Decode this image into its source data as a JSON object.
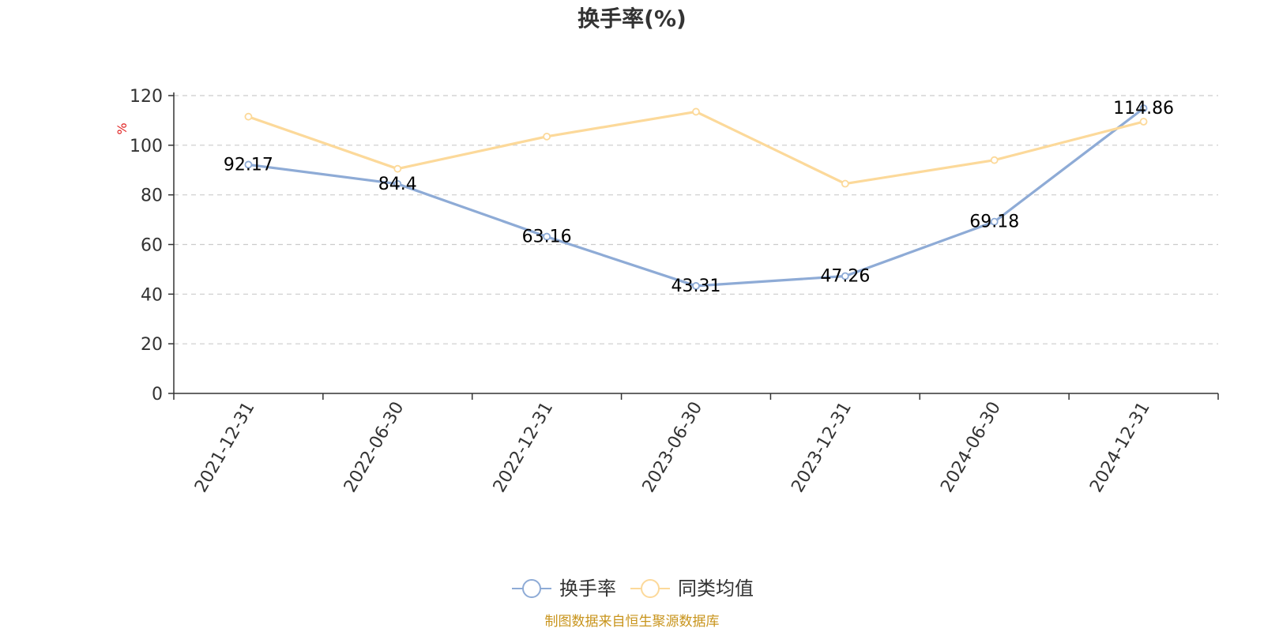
{
  "chart_data": {
    "type": "line",
    "title": "换手率(%)",
    "ylabel": "%",
    "xlabel": "",
    "ylim": [
      0,
      120
    ],
    "yticks": [
      0,
      20,
      40,
      60,
      80,
      100,
      120
    ],
    "categories": [
      "2021-12-31",
      "2022-06-30",
      "2022-12-31",
      "2023-06-30",
      "2023-12-31",
      "2024-06-30",
      "2024-12-31"
    ],
    "series": [
      {
        "name": "换手率",
        "color": "#8eabd6",
        "values": [
          92.17,
          84.4,
          63.16,
          43.31,
          47.26,
          69.18,
          114.86
        ],
        "labels": [
          "92.17",
          "84.4",
          "63.16",
          "43.31",
          "47.26",
          "69.18",
          "114.86"
        ],
        "show_labels": true
      },
      {
        "name": "同类均值",
        "color": "#fcd99a",
        "values": [
          111.5,
          90.5,
          103.5,
          113.5,
          84.5,
          94.0,
          109.5
        ],
        "show_labels": false
      }
    ],
    "grid": true,
    "legend": "bottom-center",
    "source": "制图数据来自恒生聚源数据库"
  }
}
